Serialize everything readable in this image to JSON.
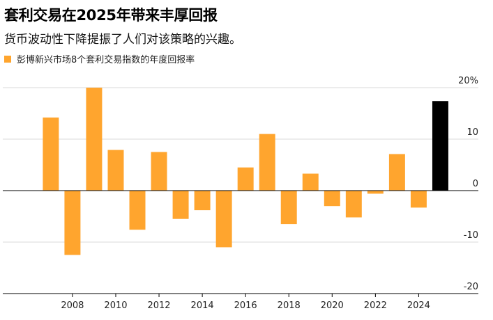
{
  "header": {
    "title": "套利交易在2025年带来丰厚回报",
    "subtitle": "货币波动性下降提振了人们对该策略的兴趣。"
  },
  "colors": {
    "bar": "#ffa52e",
    "highlight": "#000000",
    "grid": "#d9d9d9",
    "axis": "#000000"
  },
  "chart_data": {
    "type": "bar",
    "title": "套利交易在2025年带来丰厚回报",
    "subtitle": "货币波动性下降提振了人们对该策略的兴趣。",
    "legend": [
      "彭博新兴市场8个套利交易指数的年度回报率"
    ],
    "legend_position": "top-left",
    "categories": [
      2007,
      2008,
      2009,
      2010,
      2011,
      2012,
      2013,
      2014,
      2015,
      2016,
      2017,
      2018,
      2019,
      2020,
      2021,
      2022,
      2023,
      2024,
      2025
    ],
    "values": [
      14.2,
      -12.5,
      20.0,
      7.9,
      -7.6,
      7.5,
      -5.5,
      -3.8,
      -11.0,
      4.5,
      11.0,
      -6.5,
      3.3,
      -3.0,
      -5.2,
      -0.6,
      7.1,
      -3.3,
      17.4
    ],
    "highlight_category": 2025,
    "x_tick_labels": [
      "2008",
      "2010",
      "2012",
      "2014",
      "2016",
      "2018",
      "2020",
      "2022",
      "2024"
    ],
    "y_ticks": [
      20,
      10,
      0,
      -10,
      -20
    ],
    "y_tick_labels": [
      "20%",
      "10",
      "0",
      "-10",
      "-20"
    ],
    "ylim": [
      -20,
      20
    ],
    "xlabel": "",
    "ylabel": "",
    "grid": true,
    "y_axis_side": "right"
  }
}
